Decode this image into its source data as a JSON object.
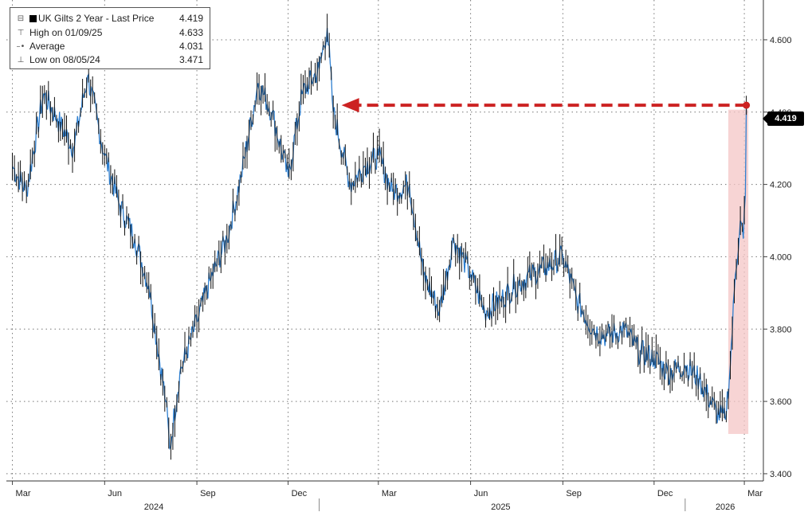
{
  "chart_data": {
    "type": "line",
    "title": "UK Gilts 2 Year",
    "legend": {
      "placement": "top-left",
      "rows": [
        {
          "symbol": "square-icon",
          "label": "UK Gilts 2 Year  - Last Price",
          "value": "4.419"
        },
        {
          "symbol": "high-marker-icon",
          "label": "High on 01/09/25",
          "value": "4.633"
        },
        {
          "symbol": "average-marker-icon",
          "label": "Average",
          "value": "4.031"
        },
        {
          "symbol": "low-marker-icon",
          "label": "Low on 08/05/24",
          "value": "3.471"
        }
      ]
    },
    "last_price_label": "4.419",
    "y_ticks": [
      "3.400",
      "3.600",
      "3.800",
      "4.000",
      "4.200",
      "4.400",
      "4.600"
    ],
    "ylim": [
      3.38,
      4.71
    ],
    "x_months": [
      "Mar",
      "Jun",
      "Sep",
      "Dec",
      "Mar",
      "Jun",
      "Sep",
      "Dec",
      "Mar"
    ],
    "x_years": [
      "2024",
      "2025",
      "2026"
    ],
    "grid": true,
    "series_colors": {
      "line": "#2e7fd0",
      "candle": "#111111",
      "arrow": "#cc2222",
      "highlight": "#f4c6c6"
    },
    "annotation": {
      "from_date": "2026-03-03",
      "to_date": "2025-01-09",
      "value": 4.419
    },
    "highlight_range": {
      "start": "2026-02-13",
      "end": "2026-03-05",
      "y_low": 3.51
    },
    "series": [
      {
        "x": [
          "2024-03-01",
          "2024-03-15",
          "2024-04-01",
          "2024-04-15",
          "2024-05-01",
          "2024-05-15",
          "2024-06-01",
          "2024-06-15",
          "2024-07-01",
          "2024-07-15",
          "2024-08-01",
          "2024-08-05",
          "2024-08-15",
          "2024-09-01",
          "2024-09-15",
          "2024-10-01",
          "2024-10-15",
          "2024-11-01",
          "2024-11-15",
          "2024-12-01",
          "2024-12-15",
          "2025-01-01",
          "2025-01-09",
          "2025-01-15",
          "2025-02-01",
          "2025-02-15",
          "2025-03-01",
          "2025-03-15",
          "2025-04-01",
          "2025-04-15",
          "2025-05-01",
          "2025-05-15",
          "2025-06-01",
          "2025-06-15",
          "2025-07-01",
          "2025-07-15",
          "2025-08-01",
          "2025-08-15",
          "2025-09-01",
          "2025-09-15",
          "2025-10-01",
          "2025-10-15",
          "2025-11-01",
          "2025-11-15",
          "2025-12-01",
          "2025-12-15",
          "2026-01-01",
          "2026-01-15",
          "2026-02-01",
          "2026-02-10",
          "2026-02-15",
          "2026-02-20",
          "2026-02-25",
          "2026-02-28",
          "2026-03-02",
          "2026-03-03"
        ],
        "y": [
          4.25,
          4.18,
          4.45,
          4.38,
          4.3,
          4.5,
          4.28,
          4.15,
          4.05,
          3.92,
          3.6,
          3.47,
          3.68,
          3.82,
          3.94,
          4.05,
          4.22,
          4.48,
          4.4,
          4.22,
          4.45,
          4.52,
          4.633,
          4.4,
          4.2,
          4.25,
          4.28,
          4.18,
          4.2,
          3.95,
          3.85,
          4.05,
          3.95,
          3.85,
          3.88,
          3.92,
          3.95,
          3.97,
          4.0,
          3.88,
          3.8,
          3.78,
          3.8,
          3.74,
          3.72,
          3.68,
          3.7,
          3.66,
          3.57,
          3.55,
          3.7,
          3.95,
          4.1,
          4.05,
          4.17,
          4.419
        ]
      }
    ]
  }
}
